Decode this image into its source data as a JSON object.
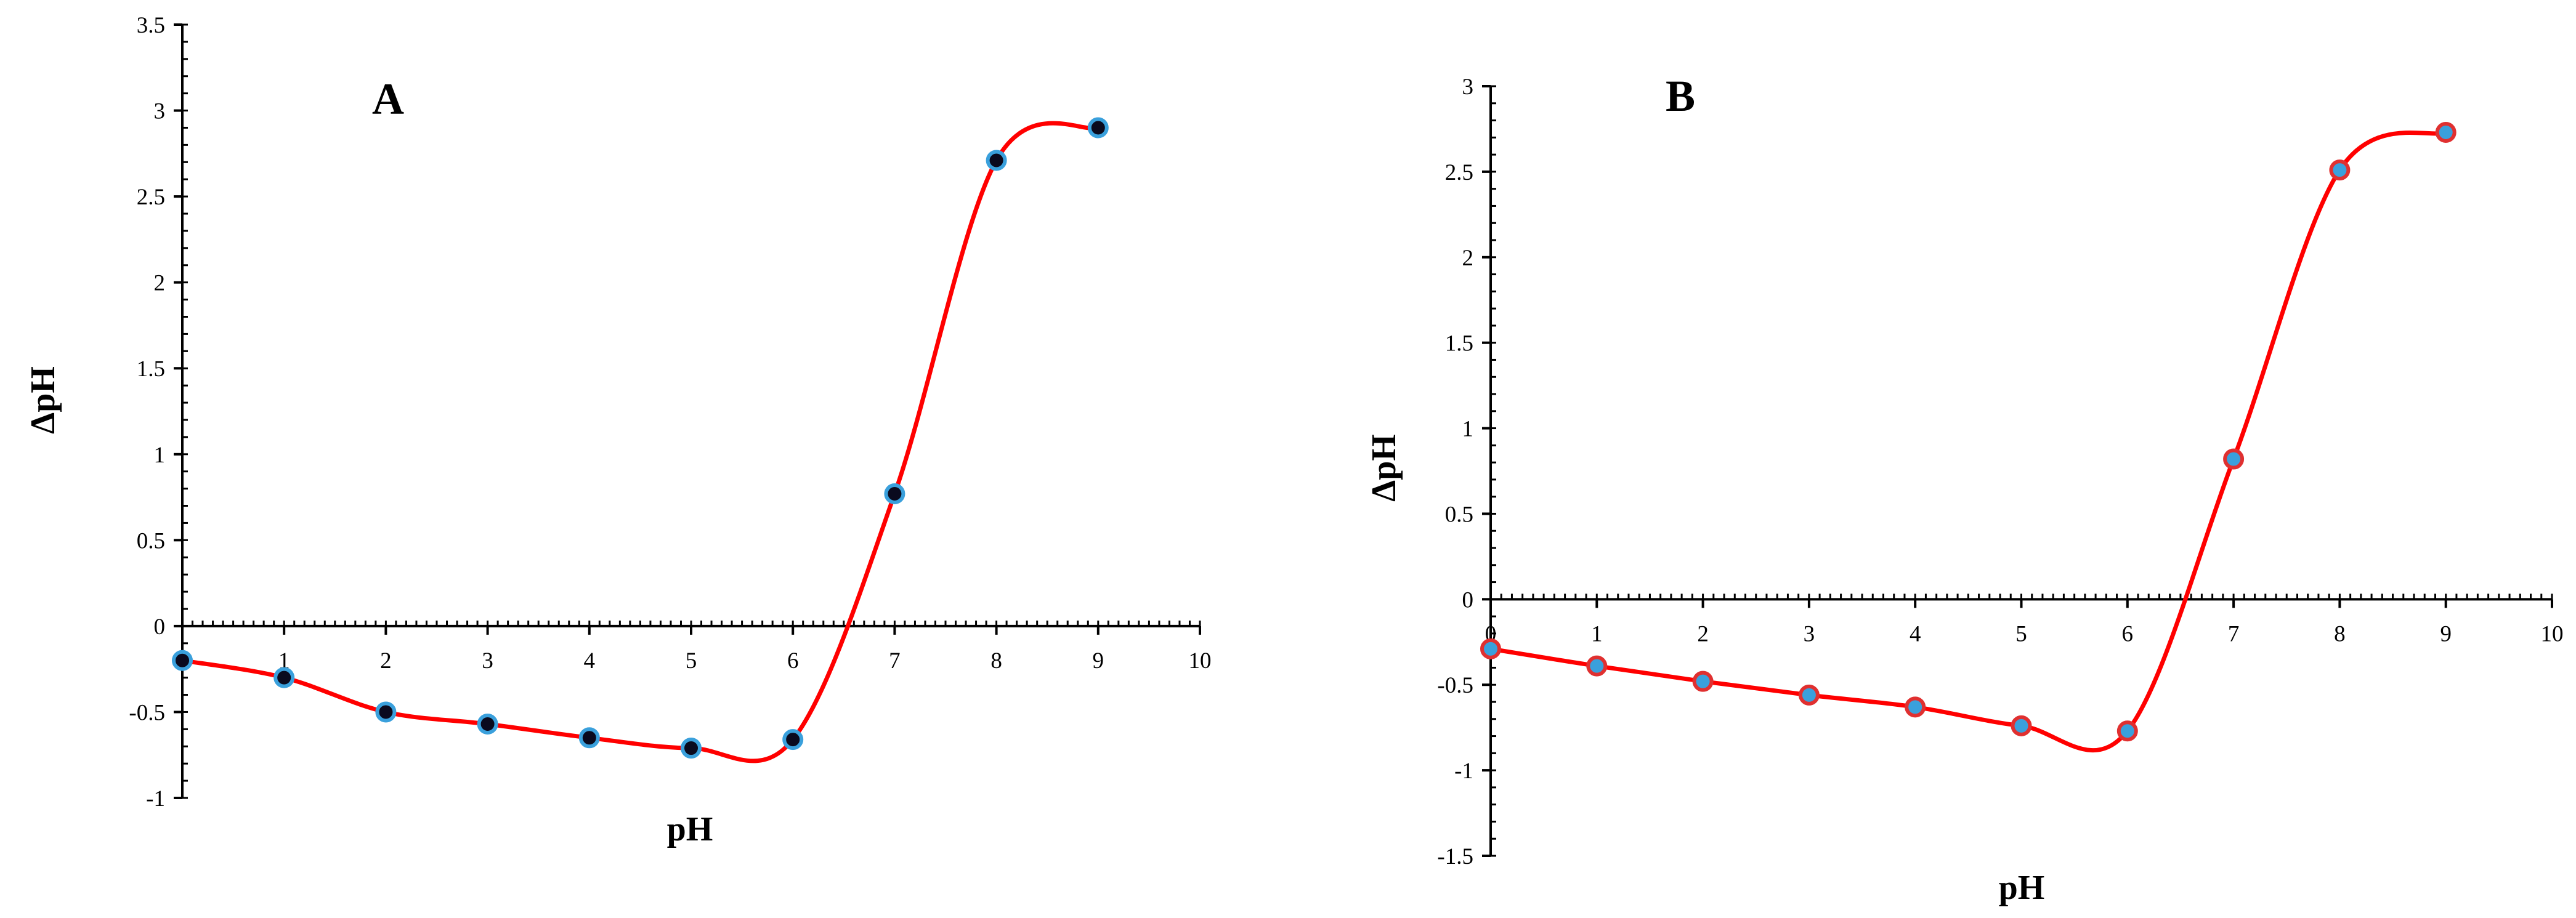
{
  "chart_data": [
    {
      "type": "line",
      "panel_label": "A",
      "xlabel": "pH",
      "ylabel": "ΔpH",
      "xlim": [
        0,
        10
      ],
      "ylim": [
        -1,
        3.5
      ],
      "x_ticks": [
        "0",
        "1",
        "2",
        "3",
        "4",
        "5",
        "6",
        "7",
        "8",
        "9",
        "10"
      ],
      "y_ticks": [
        "3.5",
        "3",
        "2.5",
        "2",
        "1.5",
        "1",
        "0.5",
        "0",
        "-0.5",
        "-1"
      ],
      "grid": false,
      "line_color": "#ff0000",
      "marker_fill": "#0a0a1e",
      "marker_stroke": "#3aa0dc",
      "series": [
        {
          "x": [
            0,
            1,
            2,
            3,
            4,
            5,
            6,
            7,
            8,
            9
          ],
          "y": [
            -0.2,
            -0.3,
            -0.5,
            -0.57,
            -0.65,
            -0.71,
            -0.66,
            0.77,
            2.71,
            2.9
          ]
        }
      ]
    },
    {
      "type": "line",
      "panel_label": "B",
      "xlabel": "pH",
      "ylabel": "ΔpH",
      "xlim": [
        0,
        10
      ],
      "ylim": [
        -1.5,
        3
      ],
      "x_ticks": [
        "0",
        "1",
        "2",
        "3",
        "4",
        "5",
        "6",
        "7",
        "8",
        "9",
        "10"
      ],
      "y_ticks": [
        "3",
        "2.5",
        "2",
        "1.5",
        "1",
        "0.5",
        "0",
        "-0.5",
        "-1",
        "-1.5"
      ],
      "grid": false,
      "line_color": "#ff0000",
      "marker_fill": "#3aa0dc",
      "marker_stroke": "#e03030",
      "series": [
        {
          "x": [
            0,
            1,
            2,
            3,
            4,
            5,
            6,
            7,
            8,
            9
          ],
          "y": [
            -0.29,
            -0.39,
            -0.48,
            -0.56,
            -0.63,
            -0.74,
            -0.77,
            0.82,
            2.51,
            2.73
          ]
        }
      ]
    }
  ]
}
